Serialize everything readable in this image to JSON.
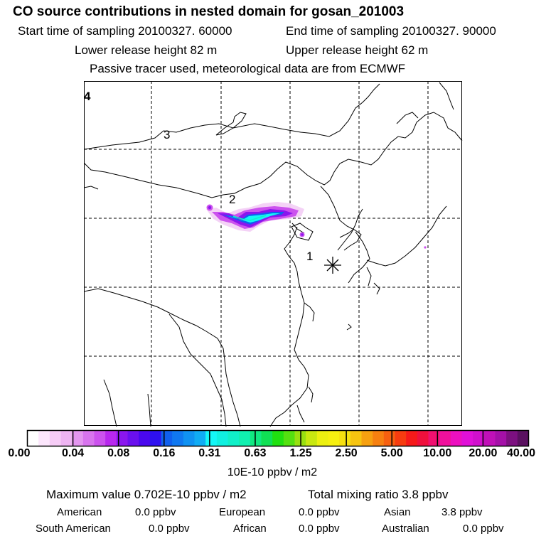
{
  "header": {
    "title": "CO  source contributions in nested domain for gosan_201003",
    "start_time": "Start time of sampling 20100327. 60000",
    "end_time": "End time of sampling 20100327. 90000",
    "lower_release": "Lower release height   82 m",
    "upper_release": "Upper release height   62 m",
    "passive_tracer": "Passive tracer used, meteorological data are from ECMWF"
  },
  "map": {
    "labels": {
      "l1": "1",
      "l2": "2",
      "l3": "3",
      "l4": "4"
    },
    "receptor_marker": "asterisk"
  },
  "colorbar": {
    "ticks": [
      "0.00",
      "0.04",
      "0.08",
      "0.16",
      "0.31",
      "0.63",
      "1.25",
      "2.50",
      "5.00",
      "10.00",
      "20.00",
      "40.00"
    ],
    "units": "10E-10 ppbv / m2",
    "colors": [
      "#ffffff",
      "#fce6fc",
      "#f6ccf6",
      "#eeb4f2",
      "#e496f0",
      "#d874ee",
      "#cc52ee",
      "#b828ee",
      "#8a16ee",
      "#6a10ee",
      "#4a08ee",
      "#2e10f0",
      "#1060ee",
      "#1078f0",
      "#1092f2",
      "#10acf4",
      "#14f6f6",
      "#10f0e0",
      "#10f0c8",
      "#10f0b0",
      "#10e880",
      "#10e054",
      "#20e010",
      "#54e010",
      "#98e010",
      "#c8e810",
      "#ecf010",
      "#f6f010",
      "#f6e010",
      "#f6c410",
      "#f6a010",
      "#f68010",
      "#f66010",
      "#f63c10",
      "#f61a1a",
      "#f0103c",
      "#f01070",
      "#f0109c",
      "#ec10c0",
      "#e010d8",
      "#d010cc",
      "#c010b8",
      "#a410a8",
      "#7c1080",
      "#5a1060"
    ]
  },
  "summary": {
    "max_label": "Maximum value  0.702E-10 ppbv / m2",
    "total_label": "Total mixing ratio       3.8 ppbv",
    "rows": [
      [
        {
          "name": "American",
          "value": "0.0 ppbv"
        },
        {
          "name": "European",
          "value": "0.0 ppbv"
        },
        {
          "name": "Asian",
          "value": "3.8 ppbv"
        }
      ],
      [
        {
          "name": "South American",
          "value": "0.0 ppbv"
        },
        {
          "name": "African",
          "value": "0.0 ppbv"
        },
        {
          "name": "Australian",
          "value": "0.0 ppbv"
        }
      ]
    ]
  }
}
